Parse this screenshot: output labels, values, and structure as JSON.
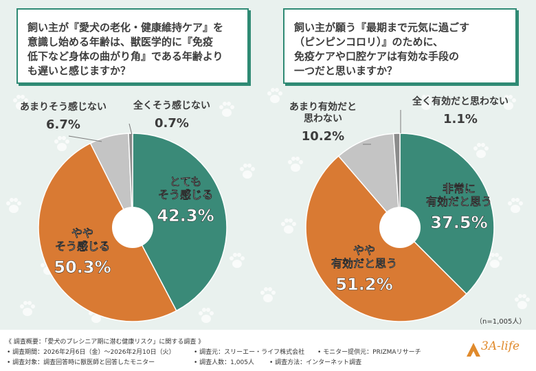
{
  "left_panel": {
    "question_lines": [
      "飼い主が『愛犬の老化・健康維持ケア』を",
      "意識し始める年齢は、獣医学的に『免疫",
      "低下など身体の曲がり角』である年齢より",
      "も遅いと感じますか？"
    ]
  },
  "right_panel": {
    "question_lines": [
      "飼い主が願う『最期まで元気に過ごす",
      "（ピンピンコロリ）』のために、",
      "免疫ケアや口腔ケアは有効な手段の",
      "一つだと思いますか？"
    ],
    "sample_size": "（n=1,005人）"
  },
  "chart_data": [
    {
      "type": "pie",
      "start": "12 o'clock",
      "direction": "clockwise",
      "slices": [
        {
          "label_lines": [
            "とても",
            "そう感じる"
          ],
          "value": 42.3,
          "value_label": "42.3%",
          "color": "#3a8a78"
        },
        {
          "label_lines": [
            "やや",
            "そう感じる"
          ],
          "value": 50.3,
          "value_label": "50.3%",
          "color": "#d97a33"
        },
        {
          "label_lines": [
            "あまりそう感じない"
          ],
          "value": 6.7,
          "value_label": "6.7%",
          "color": "#c4c4c4"
        },
        {
          "label_lines": [
            "全くそう感じない"
          ],
          "value": 0.7,
          "value_label": "0.7%",
          "color": "#8c8c8c"
        }
      ]
    },
    {
      "type": "pie",
      "start": "12 o'clock",
      "direction": "clockwise",
      "slices": [
        {
          "label_lines": [
            "非常に",
            "有効だと思う"
          ],
          "value": 37.5,
          "value_label": "37.5%",
          "color": "#3a8a78"
        },
        {
          "label_lines": [
            "やや",
            "有効だと思う"
          ],
          "value": 51.2,
          "value_label": "51.2%",
          "color": "#d97a33"
        },
        {
          "label_lines": [
            "あまり有効だと",
            "思わない"
          ],
          "value": 10.2,
          "value_label": "10.2%",
          "color": "#c4c4c4"
        },
        {
          "label_lines": [
            "全く有効だと思わない"
          ],
          "value": 1.1,
          "value_label": "1.1%",
          "color": "#8c8c8c"
        }
      ]
    }
  ],
  "footer": {
    "line1": "《 調査概要：「愛犬のプレシニア期に潜む健康リスク」に関する調査 》",
    "period": "• 調査期間：2026年2月6日（金）～2026年2月10日（火）",
    "source": "• 調査元：スリーエー・ライフ株式会社",
    "monitor": "• モニター提供元：PRIZMAリサーチ",
    "target": "• 調査対象：調査回答時に獣医師と回答したモニター",
    "count": "• 調査人数：1,005人",
    "method": "• 調査方法：インターネット調査",
    "logo": "3A-life"
  }
}
